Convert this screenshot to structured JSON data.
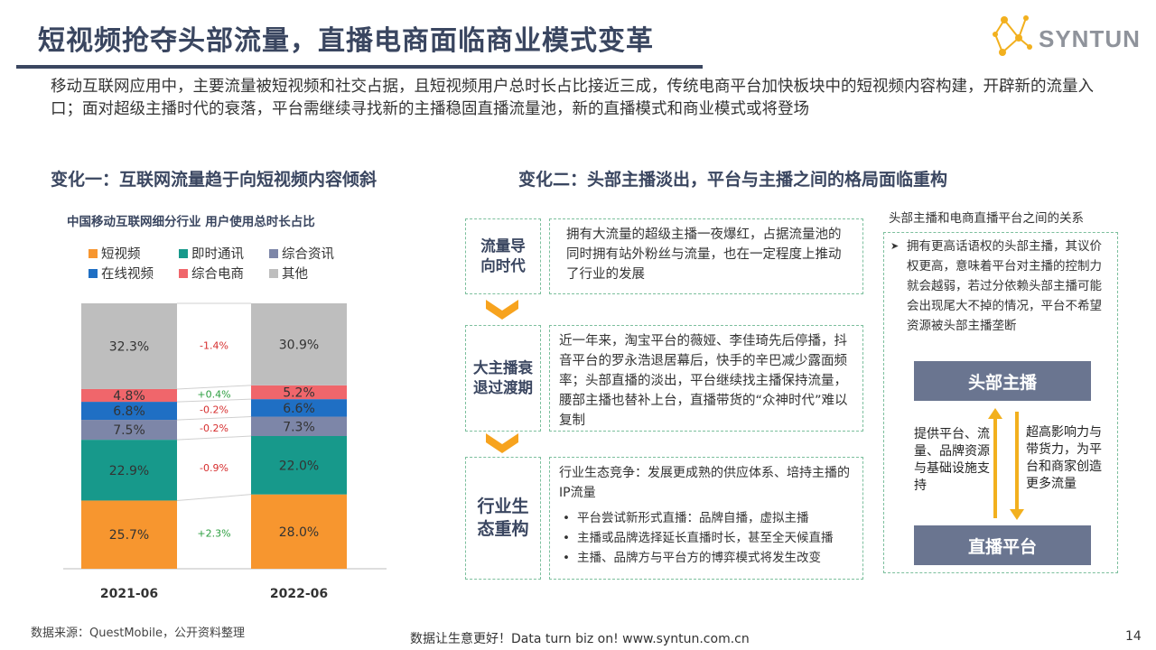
{
  "header": {
    "title": "短视频抢夺头部流量，直播电商面临商业模式变革",
    "logo_text": "SYNTUN"
  },
  "intro": "移动互联网应用中，主要流量被短视频和社交占据，且短视频用户总时长占比接近三成，传统电商平台加快板块中的短视频内容构建，开辟新的流量入口；面对超级主播时代的衰落，平台需继续寻找新的主播稳固直播流量池，新的直播模式和商业模式或将登场",
  "section1": {
    "heading": "变化一：互联网流量趋于向短视频内容倾斜"
  },
  "section2": {
    "heading": "变化二：头部主播淡出，平台与主播之间的格局面临重构"
  },
  "chart_data": {
    "type": "bar",
    "title": "中国移动互联网细分行业  用户使用总时长占比",
    "categories": [
      "2021-06",
      "2022-06"
    ],
    "series": [
      {
        "name": "短视频",
        "color": "#f7962f",
        "values": [
          25.7,
          28.0
        ],
        "labels": [
          "25.7%",
          "28.0%"
        ]
      },
      {
        "name": "即时通讯",
        "color": "#17998b",
        "values": [
          22.9,
          22.0
        ],
        "labels": [
          "22.9%",
          "22.0%"
        ]
      },
      {
        "name": "综合资讯",
        "color": "#7d86a8",
        "values": [
          7.5,
          7.3
        ],
        "labels": [
          "7.5%",
          "7.3%"
        ]
      },
      {
        "name": "在线视频",
        "color": "#1f6fc4",
        "values": [
          6.8,
          6.6
        ],
        "labels": [
          "6.8%",
          "6.6%"
        ]
      },
      {
        "name": "综合电商",
        "color": "#f0666b",
        "values": [
          4.8,
          5.2
        ],
        "labels": [
          "4.8%",
          "5.2%"
        ]
      },
      {
        "name": "其他",
        "color": "#bebebe",
        "values": [
          32.3,
          30.9
        ],
        "labels": [
          "32.3%",
          "30.9%"
        ]
      }
    ],
    "changes": [
      "+2.3%",
      "-0.9%",
      "-0.2%",
      "-0.2%",
      "+0.4%",
      "-1.4%"
    ],
    "stacked": true,
    "legend_position": "top"
  },
  "flow": [
    {
      "label": "流量导向时代",
      "text": "拥有大流量的超级主播一夜爆红，占据流量池的同时拥有站外粉丝与流量，也在一定程度上推动了行业的发展"
    },
    {
      "label": "大主播衰退过渡期",
      "text": "近一年来，淘宝平台的薇娅、李佳琦先后停播，抖音平台的罗永浩退居幕后，快手的辛巴减少露面频率；头部直播的淡出，平台继续找主播保持流量，腰部主播也替补上台，直播带货的“众神时代”难以复制"
    },
    {
      "label": "行业生态重构",
      "text": "行业生态竞争：发展更成熟的供应体系、培持主播的IP流量",
      "bullets": [
        "平台尝试新形式直播：品牌自播，虚拟主播",
        "主播或品牌选择延长直播时长，甚至全天候直播",
        "主播、品牌方与平台方的博弈模式将发生改变"
      ]
    }
  ],
  "relation": {
    "title": "头部主播和电商直播平台之间的关系",
    "desc": "拥有更高话语权的头部主播，其议价权更高，意味着平台对主播的控制力就会越弱，若过分依赖头部主播可能会出现尾大不掉的情况，平台不希望资源被头部主播垄断",
    "top_box": "头部主播",
    "bottom_box": "直播平台",
    "left_text": "提供平台、流量、品牌资源与基础设施支持",
    "right_text": "超高影响力与带货力，为平台和商家创造更多流量",
    "arrow_color": "#f2b01e"
  },
  "footer": {
    "source": "数据来源：QuestMobile，公开资料整理",
    "slogan": "数据让生意更好！Data turn biz on!  www.syntun.com.cn",
    "page": "14"
  }
}
